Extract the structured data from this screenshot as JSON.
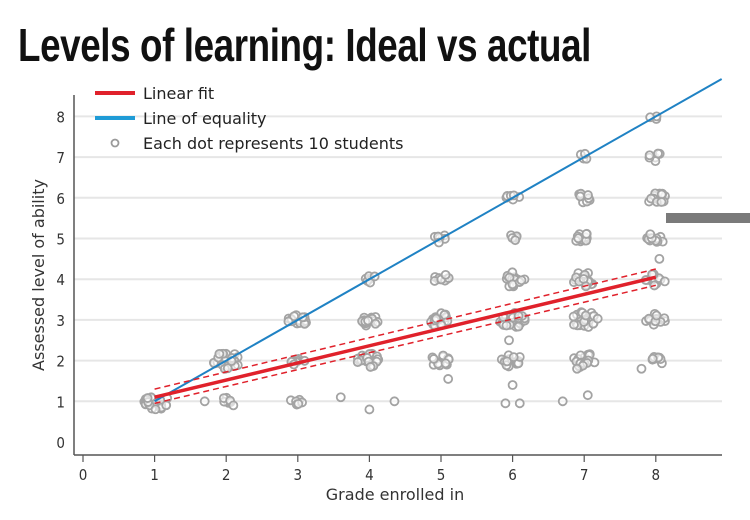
{
  "chart_data": {
    "type": "scatter",
    "title": "Levels of learning: Ideal vs actual",
    "xlabel": "Grade enrolled in",
    "ylabel": "Assessed level of ability",
    "xlim": [
      -0.1,
      8.9
    ],
    "ylim": [
      -0.3,
      8.5
    ],
    "xticks": [
      "0",
      "1",
      "2",
      "3",
      "4",
      "5",
      "6",
      "7",
      "8"
    ],
    "yticks": [
      "0",
      "1",
      "2",
      "3",
      "4",
      "5",
      "6",
      "7",
      "8"
    ],
    "grid": "horizontal",
    "legend_position": "top-left",
    "legend": {
      "linear_fit": "Linear fit",
      "equality": "Line of equality",
      "dots": "Each dot represents 10 students"
    },
    "colors": {
      "linear_fit": "#e0212b",
      "equality": "#1f82c4",
      "dots": "#9a9a9a"
    },
    "series": [
      {
        "name": "Linear fit",
        "type": "line",
        "x": [
          1,
          8
        ],
        "y": [
          1.1,
          4.05
        ],
        "ci_lower": [
          0.95,
          3.85
        ],
        "ci_upper": [
          1.3,
          4.25
        ]
      },
      {
        "name": "Line of equality",
        "type": "line",
        "x": [
          1,
          8.92
        ],
        "y": [
          1,
          8.92
        ]
      }
    ],
    "dot_clusters": [
      {
        "grade": 1,
        "level": 1,
        "dots": 25
      },
      {
        "grade": 2,
        "level": 1,
        "dots": 6
      },
      {
        "grade": 2,
        "level": 2,
        "dots": 25
      },
      {
        "grade": 3,
        "level": 1,
        "dots": 8
      },
      {
        "grade": 3,
        "level": 2,
        "dots": 8
      },
      {
        "grade": 3,
        "level": 3,
        "dots": 14
      },
      {
        "grade": 4,
        "level": 2,
        "dots": 20
      },
      {
        "grade": 4,
        "level": 3,
        "dots": 15
      },
      {
        "grade": 4,
        "level": 4,
        "dots": 6
      },
      {
        "grade": 5,
        "level": 2,
        "dots": 15
      },
      {
        "grade": 5,
        "level": 3,
        "dots": 18
      },
      {
        "grade": 5,
        "level": 4,
        "dots": 10
      },
      {
        "grade": 5,
        "level": 5,
        "dots": 6
      },
      {
        "grade": 6,
        "level": 2,
        "dots": 18
      },
      {
        "grade": 6,
        "level": 3,
        "dots": 25
      },
      {
        "grade": 6,
        "level": 4,
        "dots": 20
      },
      {
        "grade": 6,
        "level": 5,
        "dots": 5
      },
      {
        "grade": 6,
        "level": 6,
        "dots": 6
      },
      {
        "grade": 7,
        "level": 2,
        "dots": 20
      },
      {
        "grade": 7,
        "level": 3,
        "dots": 25
      },
      {
        "grade": 7,
        "level": 4,
        "dots": 20
      },
      {
        "grade": 7,
        "level": 5,
        "dots": 12
      },
      {
        "grade": 7,
        "level": 6,
        "dots": 8
      },
      {
        "grade": 7,
        "level": 7,
        "dots": 4
      },
      {
        "grade": 8,
        "level": 2,
        "dots": 10
      },
      {
        "grade": 8,
        "level": 3,
        "dots": 15
      },
      {
        "grade": 8,
        "level": 4,
        "dots": 15
      },
      {
        "grade": 8,
        "level": 5,
        "dots": 12
      },
      {
        "grade": 8,
        "level": 6,
        "dots": 15
      },
      {
        "grade": 8,
        "level": 7,
        "dots": 6
      },
      {
        "grade": 8,
        "level": 8,
        "dots": 3
      }
    ],
    "outlier_dots": [
      {
        "x": 1.7,
        "y": 1.0
      },
      {
        "x": 2.1,
        "y": 0.9
      },
      {
        "x": 3.6,
        "y": 1.1
      },
      {
        "x": 4.0,
        "y": 0.8
      },
      {
        "x": 4.35,
        "y": 1.0
      },
      {
        "x": 5.1,
        "y": 1.55
      },
      {
        "x": 5.9,
        "y": 0.95
      },
      {
        "x": 6.0,
        "y": 1.4
      },
      {
        "x": 6.1,
        "y": 0.95
      },
      {
        "x": 6.7,
        "y": 1.0
      },
      {
        "x": 7.05,
        "y": 1.15
      },
      {
        "x": 5.95,
        "y": 2.5
      },
      {
        "x": 6.9,
        "y": 1.8
      },
      {
        "x": 7.8,
        "y": 1.8
      },
      {
        "x": 8.05,
        "y": 4.5
      }
    ]
  }
}
